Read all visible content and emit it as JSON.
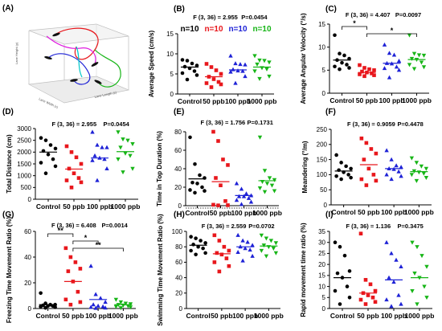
{
  "colors": {
    "Control": "#000000",
    "50 ppb": "#e8171c",
    "100 ppb": "#1e22d6",
    "1000 ppb": "#17b517"
  },
  "marker_shapes": {
    "Control": "circle",
    "50 ppb": "square",
    "100 ppb": "triangle-up",
    "1000 ppb": "triangle-down"
  },
  "panel_a": {
    "letter": "(A)",
    "axis_label_y": "Lane Height (y)",
    "axis_label_x1": "Lane Width (x)",
    "axis_label_x2": "Lane Length (z)",
    "trajectory_colors": [
      "#e8171c",
      "#1e22d6",
      "#17b517",
      "#e020e0",
      "#00c8c8"
    ]
  },
  "chart_data": [
    {
      "panel": "(B)",
      "type": "scatter",
      "categories": [
        "Control",
        "50 ppb",
        "100 ppb",
        "1000 ppb"
      ],
      "ylabel": "Average Speed (cm/s)",
      "ylim": [
        0,
        15
      ],
      "yticks": [
        0,
        5,
        10,
        15
      ],
      "stat": "F (3, 36) = 2.955",
      "p": "P=0.0454",
      "n_labels": [
        "n=10",
        "n=10",
        "n=10",
        "n=10"
      ],
      "points": [
        [
          8.5,
          8.3,
          7.6,
          7.1,
          6.8,
          6.4,
          5.7,
          5.2,
          4.7,
          3.6
        ],
        [
          7.5,
          6.7,
          5.9,
          5.0,
          4.3,
          3.7,
          3.0,
          2.7,
          2.4,
          1.7
        ],
        [
          9.5,
          7.6,
          7.4,
          7.3,
          6.1,
          5.8,
          5.7,
          5.5,
          4.4,
          2.7
        ],
        [
          9.5,
          8.4,
          8.3,
          7.9,
          7.4,
          6.5,
          6.2,
          5.7,
          4.4,
          3.8
        ]
      ],
      "means": [
        6.7,
        4.3,
        6.0,
        6.7
      ]
    },
    {
      "panel": "(C)",
      "type": "scatter",
      "categories": [
        "Control",
        "50 ppb",
        "100 ppb",
        "1000 ppb"
      ],
      "ylabel": "Average Angular Velocity (°/s)",
      "ylim": [
        0,
        15
      ],
      "yticks": [
        0,
        5,
        10,
        15
      ],
      "stat": "F (3, 36) = 4.407",
      "p": "P=0.0097",
      "sig_brackets": [
        {
          "from": 0,
          "to": 1,
          "label": "*"
        },
        {
          "from": 1,
          "to": 3,
          "label": "*"
        }
      ],
      "points": [
        [
          12.6,
          8.6,
          8.2,
          7.5,
          7.2,
          6.6,
          6.2,
          5.8,
          5.5,
          5.2
        ],
        [
          6.1,
          5.5,
          5.2,
          5.0,
          4.7,
          4.5,
          4.3,
          4.1,
          3.9,
          3.7
        ],
        [
          10.5,
          8.7,
          8.3,
          7.0,
          6.5,
          6.4,
          5.7,
          5.4,
          5.0,
          3.4
        ],
        [
          12.6,
          8.6,
          8.3,
          8.2,
          7.5,
          7.3,
          6.7,
          6.2,
          5.7,
          5.3
        ]
      ],
      "means": [
        7.2,
        4.5,
        6.5,
        7.3
      ]
    },
    {
      "panel": "(D)",
      "type": "scatter",
      "categories": [
        "Control",
        "50 ppb",
        "100 ppb",
        "1000 ppb"
      ],
      "ylabel": "Total Distance (cm)",
      "ylim": [
        0,
        3000
      ],
      "yticks": [
        0,
        500,
        1000,
        1500,
        2000,
        2500,
        3000
      ],
      "stat": "F (3, 36) = 2.955",
      "p": "P=0.0454",
      "points": [
        [
          2600,
          2500,
          2300,
          2150,
          2050,
          1900,
          1700,
          1550,
          1400,
          1100
        ],
        [
          2250,
          2000,
          1780,
          1500,
          1300,
          1100,
          900,
          800,
          720,
          500
        ],
        [
          2850,
          2300,
          2200,
          2200,
          1850,
          1750,
          1700,
          1650,
          1300,
          800
        ],
        [
          2850,
          2550,
          2500,
          2350,
          2200,
          1950,
          1850,
          1700,
          1300,
          1150
        ]
      ],
      "means": [
        2000,
        1280,
        1750,
        2020
      ]
    },
    {
      "panel": "(E)",
      "type": "scatter",
      "categories": [
        "Control",
        "50 ppb",
        "100 ppb",
        "1000 ppb"
      ],
      "ylabel": "Time in Top Duration (%)",
      "ylim": [
        0,
        80
      ],
      "yticks": [
        0,
        20,
        40,
        60,
        80
      ],
      "stat": "F (3, 36) = 1.756",
      "p": "P=0.1731",
      "dotted_baseline": 0,
      "points": [
        [
          74,
          45,
          33,
          30,
          25,
          24,
          20,
          17,
          16,
          14
        ],
        [
          80,
          70,
          50,
          44,
          30,
          22,
          5,
          1,
          0.5,
          0.3
        ],
        [
          24,
          18,
          13,
          11,
          10,
          10,
          8,
          6,
          4,
          1.5
        ],
        [
          74,
          38,
          30,
          28,
          26,
          24,
          22,
          19,
          16,
          15
        ]
      ],
      "means": [
        29,
        26,
        11,
        27
      ]
    },
    {
      "panel": "(F)",
      "type": "scatter",
      "categories": [
        "Control",
        "50 ppb",
        "100 ppb",
        "1000 ppb"
      ],
      "ylabel": "Meandering (°/m)",
      "ylim": [
        0,
        250
      ],
      "yticks": [
        0,
        50,
        100,
        150,
        200,
        250
      ],
      "stat": "F (3, 36) = 0.9059",
      "p": "P=0.4478",
      "points": [
        [
          165,
          140,
          128,
          120,
          115,
          108,
          100,
          95,
          90,
          85
        ],
        [
          220,
          205,
          185,
          170,
          150,
          120,
          100,
          85,
          80,
          65
        ],
        [
          180,
          150,
          130,
          125,
          120,
          118,
          110,
          100,
          95,
          85
        ],
        [
          155,
          140,
          128,
          120,
          112,
          108,
          104,
          100,
          90,
          80
        ]
      ],
      "means": [
        112,
        133,
        120,
        110
      ]
    },
    {
      "panel": "(G)",
      "type": "scatter",
      "categories": [
        "Control",
        "50 ppb",
        "100 ppb",
        "1000 ppb"
      ],
      "ylabel": "Freezing Time Movement Ratio (%)",
      "ylim": [
        0,
        60
      ],
      "yticks": [
        0,
        20,
        40,
        60
      ],
      "stat": "F (3, 36) = 6.408",
      "p": "P=0.0014",
      "sig_brackets": [
        {
          "from": 0,
          "to": 1,
          "label": "**"
        },
        {
          "from": 1,
          "to": 2,
          "label": "*"
        },
        {
          "from": 1,
          "to": 3,
          "label": "**"
        }
      ],
      "points": [
        [
          12,
          4,
          3,
          3,
          2.5,
          2,
          2,
          1.5,
          1,
          0.5
        ],
        [
          47,
          40,
          36,
          31,
          29,
          21,
          13,
          7,
          5,
          3
        ],
        [
          33,
          11,
          8,
          5,
          3,
          2,
          1.5,
          1,
          0.5,
          0.3
        ],
        [
          7,
          5,
          4,
          3.5,
          3,
          2.5,
          2,
          1.5,
          1,
          0.5
        ]
      ],
      "means": [
        3,
        21,
        7,
        3
      ]
    },
    {
      "panel": "(H)",
      "type": "scatter",
      "categories": [
        "Control",
        "50 ppb",
        "100 ppb",
        "1000 ppb"
      ],
      "ylabel": "Swimming Time Movement  Ratio (%)",
      "ylim": [
        0,
        100
      ],
      "yticks": [
        0,
        20,
        40,
        60,
        80,
        100
      ],
      "stat": "F (3, 36) = 2.559",
      "p": "P=0.0702",
      "points": [
        [
          93,
          91,
          88,
          85,
          83,
          80,
          78,
          75,
          72,
          70
        ],
        [
          95,
          88,
          80,
          75,
          72,
          70,
          65,
          60,
          55,
          48
        ],
        [
          95,
          88,
          86,
          82,
          80,
          78,
          76,
          73,
          68,
          62
        ],
        [
          95,
          91,
          88,
          85,
          82,
          80,
          78,
          75,
          72,
          68
        ]
      ],
      "means": [
        82,
        71,
        80,
        81
      ]
    },
    {
      "panel": "(I)",
      "type": "scatter",
      "categories": [
        "Control",
        "50 ppb",
        "100 ppb",
        "1000 ppb"
      ],
      "ylabel": "Rapid movement time ratio (%)",
      "ylim": [
        0,
        35
      ],
      "yticks": [
        0,
        5,
        10,
        15,
        20,
        25,
        30,
        35
      ],
      "stat": "F (3, 36) = 1.136",
      "p": "P=0.3475",
      "points": [
        [
          30,
          28,
          24,
          17,
          16,
          14,
          10,
          8,
          5,
          2
        ],
        [
          34,
          13,
          11,
          8,
          7,
          6,
          5,
          4,
          3,
          2
        ],
        [
          30,
          25,
          22,
          19,
          14,
          12,
          6,
          4,
          2,
          1
        ],
        [
          30,
          28,
          24,
          19,
          16,
          14,
          10,
          8,
          5,
          2
        ]
      ],
      "means": [
        14,
        7,
        13,
        14
      ]
    }
  ]
}
